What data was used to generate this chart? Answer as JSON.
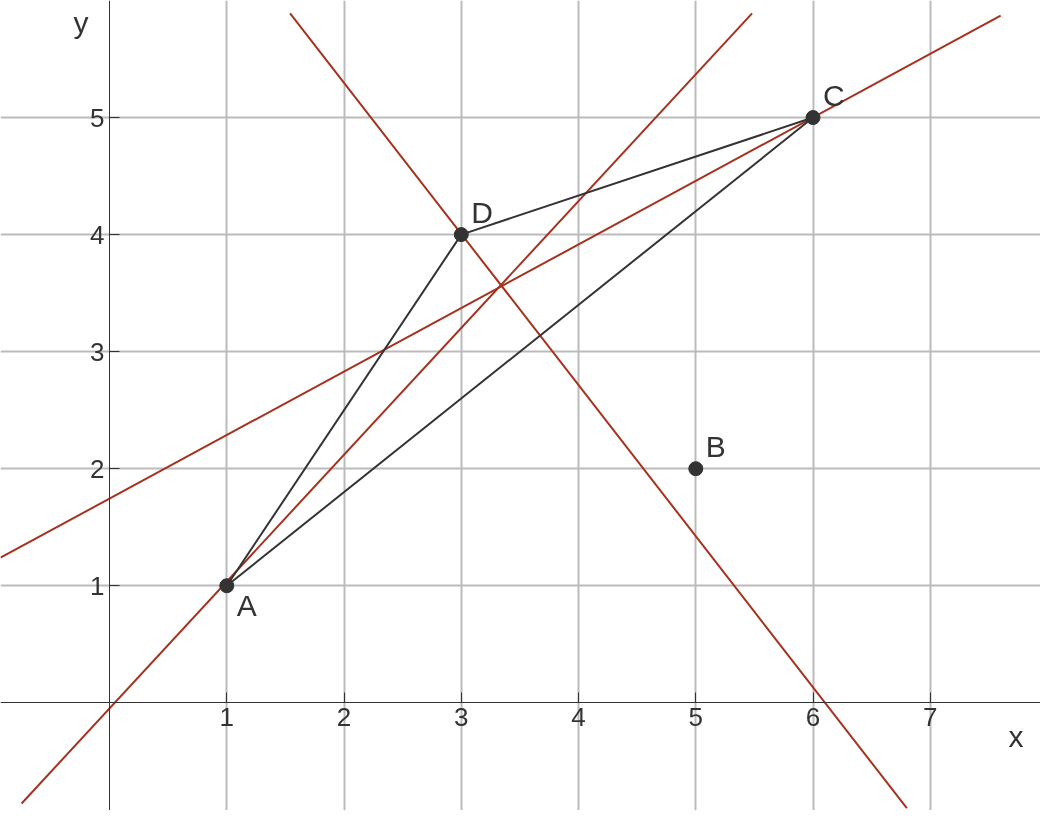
{
  "chart_data": {
    "type": "line",
    "xlabel": "x",
    "ylabel": "y",
    "xlim": [
      -0.93,
      7.94
    ],
    "ylim": [
      -0.92,
      6.0
    ],
    "xticks": [
      1,
      2,
      3,
      4,
      5,
      6,
      7
    ],
    "yticks": [
      1,
      2,
      3,
      4,
      5
    ],
    "grid": true,
    "line_style": "solid",
    "marker": "none",
    "series": [
      {
        "color": "#a5321f",
        "x": [
          -0.93,
          7.6
        ],
        "values": [
          1.24,
          5.87
        ]
      },
      {
        "color": "#a5321f",
        "x": [
          -0.75,
          5.48
        ],
        "values": [
          -0.86,
          5.89
        ]
      },
      {
        "color": "#a5321f",
        "x": [
          1.54,
          6.8
        ],
        "values": [
          5.89,
          -0.9
        ]
      },
      {
        "color": "#333333",
        "x": [
          1,
          3
        ],
        "values": [
          1,
          4
        ]
      },
      {
        "color": "#333333",
        "x": [
          3,
          6
        ],
        "values": [
          4,
          5
        ]
      },
      {
        "color": "#333333",
        "x": [
          1,
          6
        ],
        "values": [
          1,
          5
        ]
      },
      {
        "type": "scatter",
        "marker": "circle",
        "color": "#333333",
        "x": [
          1,
          5,
          6,
          3
        ],
        "values": [
          1,
          2,
          5,
          4
        ]
      }
    ],
    "annotations": [
      {
        "text": "A",
        "x": 1,
        "y": 1
      },
      {
        "text": "B",
        "x": 5,
        "y": 2
      },
      {
        "text": "C",
        "x": 6,
        "y": 5
      },
      {
        "text": "D",
        "x": 3,
        "y": 4
      }
    ]
  }
}
